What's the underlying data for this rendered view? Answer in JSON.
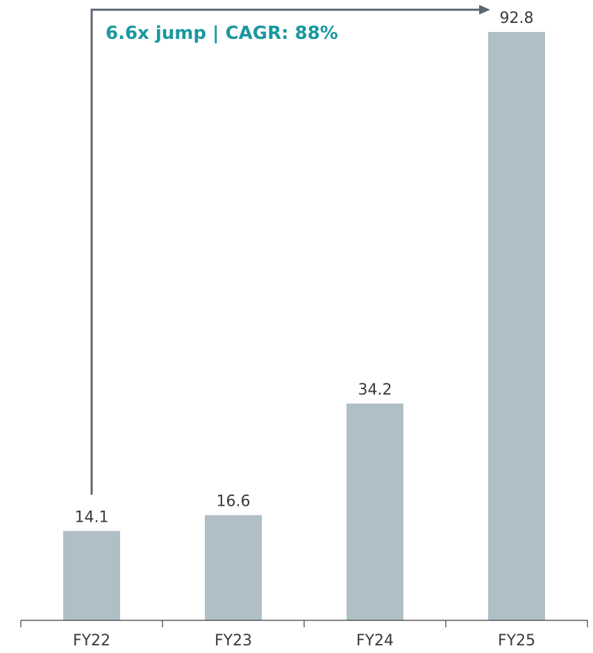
{
  "chart_data": {
    "type": "bar",
    "categories": [
      "FY22",
      "FY23",
      "FY24",
      "FY25"
    ],
    "values": [
      14.1,
      16.6,
      34.2,
      92.8
    ],
    "value_labels": [
      "14.1",
      "16.6",
      "34.2",
      "92.8"
    ],
    "title": "",
    "xlabel": "",
    "ylabel": "",
    "ylim": [
      0,
      92.8
    ],
    "grid": false,
    "legend": "none",
    "bar_color": "#b0bfc6",
    "axis_color": "#3a3a3a",
    "annotation": {
      "text": "6.6x jump | CAGR: 88%",
      "from_category": "FY22",
      "to_category": "FY25",
      "text_color": "#1a98a0",
      "arrow_color": "#5d6770"
    }
  }
}
